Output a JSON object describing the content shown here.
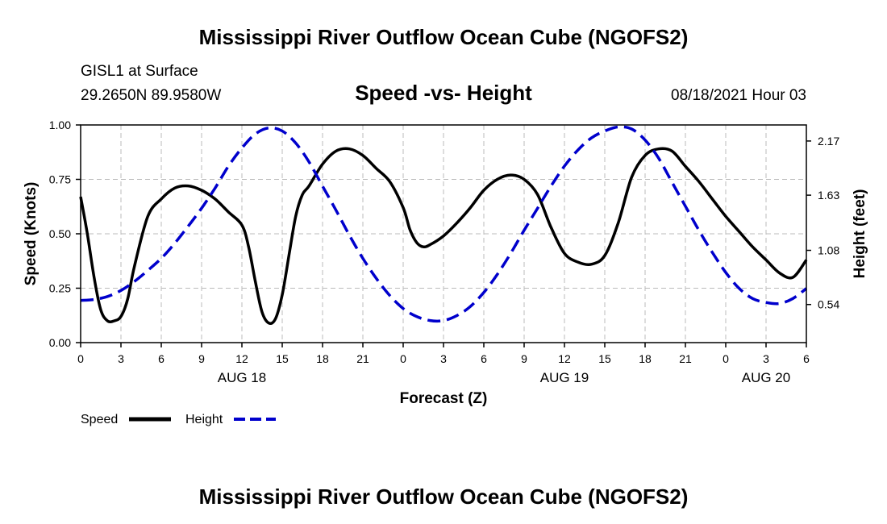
{
  "header": {
    "title": "Mississippi River Outflow Ocean Cube (NGOFS2)",
    "station": "GISL1 at Surface",
    "coords": "29.2650N  89.9580W",
    "subtitle": "Speed -vs- Height",
    "datetime": "08/18/2021 Hour 03",
    "footer_title": "Mississippi River Outflow Ocean Cube (NGOFS2)"
  },
  "legend": {
    "speed_label": "Speed",
    "height_label": "Height"
  },
  "colors": {
    "speed": "#000000",
    "height": "#0000cc",
    "grid": "#bbbbbb"
  },
  "chart_data": {
    "type": "line",
    "title": "Speed -vs- Height",
    "xlabel": "Forecast (Z)",
    "ylabel": "Speed (Knots)",
    "y2label": "Height (feet)",
    "xlim": [
      0,
      54
    ],
    "ylim": [
      0,
      1.0
    ],
    "y2lim": [
      0.16,
      2.33
    ],
    "x_ticks": [
      0,
      3,
      6,
      9,
      12,
      15,
      18,
      21,
      24,
      27,
      30,
      33,
      36,
      39,
      42,
      45,
      48,
      51,
      54
    ],
    "x_tick_labels": [
      "0",
      "3",
      "6",
      "9",
      "12",
      "15",
      "18",
      "21",
      "0",
      "3",
      "6",
      "9",
      "12",
      "15",
      "18",
      "21",
      "0",
      "3",
      "6"
    ],
    "date_labels": [
      {
        "x": 12,
        "label": "AUG 18"
      },
      {
        "x": 36,
        "label": "AUG 19"
      },
      {
        "x": 51,
        "label": "AUG 20"
      }
    ],
    "y_ticks": [
      0.0,
      0.25,
      0.5,
      0.75,
      1.0
    ],
    "y_tick_labels": [
      "0.00",
      "0.25",
      "0.50",
      "0.75",
      "1.00"
    ],
    "y2_ticks": [
      0.54,
      1.08,
      1.63,
      2.17
    ],
    "y2_tick_labels": [
      "0.54",
      "1.08",
      "1.63",
      "2.17"
    ],
    "grid": true,
    "series": [
      {
        "name": "Speed",
        "axis": "left",
        "style": "solid",
        "x": [
          0,
          0.5,
          1,
          1.5,
          2,
          2.5,
          3,
          3.5,
          4,
          5,
          6,
          7,
          8,
          9,
          10,
          11,
          12,
          12.5,
          13,
          13.5,
          14,
          14.5,
          15,
          15.5,
          16,
          16.5,
          17,
          18,
          19,
          20,
          21,
          22,
          23,
          24,
          24.5,
          25,
          25.5,
          26,
          27,
          28,
          29,
          30,
          31,
          32,
          33,
          34,
          35,
          36,
          37,
          38,
          39,
          40,
          41,
          42,
          43,
          44,
          45,
          46,
          47,
          48,
          49,
          50,
          51,
          52,
          53,
          54
        ],
        "values": [
          0.67,
          0.5,
          0.3,
          0.15,
          0.1,
          0.1,
          0.12,
          0.2,
          0.35,
          0.58,
          0.66,
          0.71,
          0.72,
          0.7,
          0.66,
          0.6,
          0.54,
          0.44,
          0.28,
          0.14,
          0.09,
          0.11,
          0.22,
          0.4,
          0.58,
          0.68,
          0.72,
          0.82,
          0.88,
          0.89,
          0.86,
          0.8,
          0.74,
          0.62,
          0.52,
          0.46,
          0.44,
          0.45,
          0.49,
          0.55,
          0.62,
          0.7,
          0.75,
          0.77,
          0.75,
          0.68,
          0.53,
          0.41,
          0.37,
          0.36,
          0.4,
          0.55,
          0.76,
          0.86,
          0.89,
          0.88,
          0.81,
          0.74,
          0.66,
          0.58,
          0.51,
          0.44,
          0.38,
          0.32,
          0.3,
          0.38
        ]
      },
      {
        "name": "Height",
        "axis": "right",
        "style": "dashed",
        "x": [
          0,
          1,
          2,
          3,
          4,
          5,
          6,
          7,
          8,
          9,
          10,
          11,
          12,
          13,
          14,
          15,
          16,
          17,
          18,
          19,
          20,
          21,
          22,
          23,
          24,
          25,
          26,
          27,
          28,
          29,
          30,
          31,
          32,
          33,
          34,
          35,
          36,
          37,
          38,
          39,
          40,
          41,
          42,
          43,
          44,
          45,
          46,
          47,
          48,
          49,
          50,
          51,
          52,
          53,
          54
        ],
        "values": [
          0.58,
          0.59,
          0.62,
          0.68,
          0.77,
          0.88,
          1.0,
          1.15,
          1.32,
          1.5,
          1.7,
          1.92,
          2.1,
          2.24,
          2.3,
          2.27,
          2.15,
          1.96,
          1.72,
          1.48,
          1.23,
          1.0,
          0.8,
          0.63,
          0.5,
          0.42,
          0.38,
          0.38,
          0.43,
          0.52,
          0.66,
          0.84,
          1.05,
          1.28,
          1.5,
          1.72,
          1.92,
          2.08,
          2.2,
          2.27,
          2.31,
          2.29,
          2.18,
          2.0,
          1.76,
          1.52,
          1.28,
          1.06,
          0.86,
          0.7,
          0.6,
          0.56,
          0.55,
          0.6,
          0.7
        ]
      }
    ]
  }
}
